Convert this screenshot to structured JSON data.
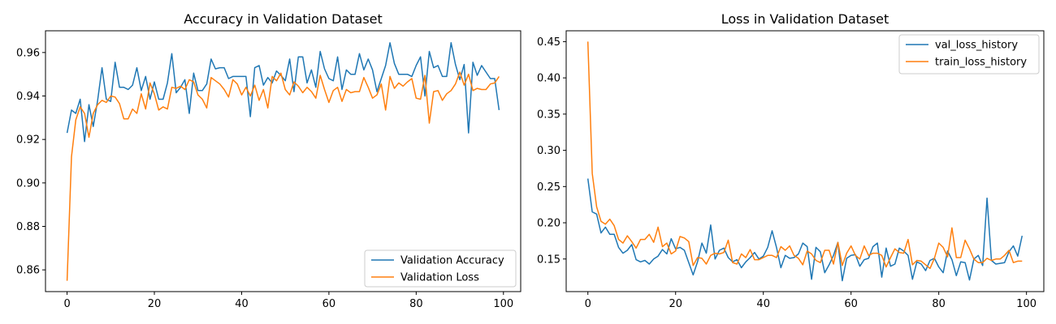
{
  "chart_data": [
    {
      "type": "line",
      "title": "Accuracy in Validation Dataset",
      "xlabel": "",
      "ylabel": "",
      "xlim": [
        -4.95,
        103.95
      ],
      "ylim": [
        0.85,
        0.97
      ],
      "xticks": [
        0,
        20,
        40,
        60,
        80,
        100
      ],
      "yticks": [
        0.86,
        0.88,
        0.9,
        0.92,
        0.94,
        0.96
      ],
      "ytick_labels": [
        "0.86",
        "0.88",
        "0.90",
        "0.92",
        "0.94",
        "0.96"
      ],
      "grid": false,
      "legend_position": "lower-right",
      "x_range": [
        0,
        99
      ],
      "series": [
        {
          "name": "Validation Accuracy",
          "color": "#1f77b4",
          "values": [
            0.923,
            0.9335,
            0.932,
            0.9385,
            0.919,
            0.936,
            0.926,
            0.938,
            0.953,
            0.9385,
            0.9375,
            0.9555,
            0.944,
            0.944,
            0.943,
            0.945,
            0.953,
            0.9425,
            0.949,
            0.9385,
            0.9465,
            0.9385,
            0.9385,
            0.946,
            0.9595,
            0.9415,
            0.944,
            0.9475,
            0.932,
            0.9505,
            0.9425,
            0.9425,
            0.9455,
            0.957,
            0.9525,
            0.953,
            0.953,
            0.948,
            0.949,
            0.949,
            0.949,
            0.949,
            0.9305,
            0.953,
            0.954,
            0.945,
            0.9485,
            0.946,
            0.9515,
            0.9495,
            0.947,
            0.957,
            0.942,
            0.958,
            0.958,
            0.946,
            0.952,
            0.944,
            0.9605,
            0.9525,
            0.948,
            0.947,
            0.958,
            0.943,
            0.952,
            0.95,
            0.95,
            0.9595,
            0.952,
            0.957,
            0.952,
            0.942,
            0.948,
            0.954,
            0.9645,
            0.955,
            0.95,
            0.95,
            0.95,
            0.949,
            0.954,
            0.958,
            0.94,
            0.9605,
            0.953,
            0.954,
            0.949,
            0.949,
            0.9645,
            0.9545,
            0.9475,
            0.9545,
            0.923,
            0.9555,
            0.9495,
            0.954,
            0.951,
            0.948,
            0.948,
            0.9335
          ]
        },
        {
          "name": "Validation Loss",
          "color": "#ff7f0e",
          "values": [
            0.855,
            0.912,
            0.929,
            0.935,
            0.932,
            0.921,
            0.932,
            0.936,
            0.938,
            0.937,
            0.94,
            0.9395,
            0.9365,
            0.9295,
            0.9295,
            0.934,
            0.932,
            0.941,
            0.934,
            0.946,
            0.941,
            0.9335,
            0.935,
            0.934,
            0.944,
            0.9435,
            0.9445,
            0.943,
            0.9475,
            0.9465,
            0.9405,
            0.9385,
            0.9345,
            0.9485,
            0.947,
            0.9455,
            0.943,
            0.9395,
            0.9475,
            0.9455,
            0.9405,
            0.944,
            0.94,
            0.945,
            0.938,
            0.943,
            0.9345,
            0.949,
            0.947,
            0.9505,
            0.943,
            0.9405,
            0.9465,
            0.9445,
            0.9415,
            0.944,
            0.942,
            0.939,
            0.9495,
            0.943,
            0.937,
            0.9425,
            0.944,
            0.9375,
            0.943,
            0.9415,
            0.942,
            0.942,
            0.9485,
            0.944,
            0.939,
            0.9405,
            0.9455,
            0.9335,
            0.949,
            0.9435,
            0.946,
            0.9445,
            0.9465,
            0.948,
            0.939,
            0.9385,
            0.9495,
            0.9275,
            0.942,
            0.9425,
            0.938,
            0.941,
            0.9425,
            0.9455,
            0.951,
            0.945,
            0.95,
            0.9425,
            0.9435,
            0.943,
            0.943,
            0.9455,
            0.946,
            0.949
          ]
        }
      ]
    },
    {
      "type": "line",
      "title": "Loss in Validation Dataset",
      "xlabel": "",
      "ylabel": "",
      "xlim": [
        -4.95,
        103.95
      ],
      "ylim": [
        0.105,
        0.465
      ],
      "xticks": [
        0,
        20,
        40,
        60,
        80,
        100
      ],
      "yticks": [
        0.15,
        0.2,
        0.25,
        0.3,
        0.35,
        0.4,
        0.45
      ],
      "ytick_labels": [
        "0.15",
        "0.20",
        "0.25",
        "0.30",
        "0.35",
        "0.40",
        "0.45"
      ],
      "grid": false,
      "legend_position": "upper-right",
      "x_range": [
        0,
        99
      ],
      "series": [
        {
          "name": "val_loss_history",
          "color": "#1f77b4",
          "values": [
            0.261,
            0.215,
            0.212,
            0.186,
            0.194,
            0.184,
            0.184,
            0.166,
            0.158,
            0.162,
            0.17,
            0.149,
            0.146,
            0.148,
            0.143,
            0.15,
            0.154,
            0.163,
            0.157,
            0.178,
            0.164,
            0.166,
            0.162,
            0.145,
            0.128,
            0.146,
            0.172,
            0.158,
            0.197,
            0.15,
            0.162,
            0.165,
            0.152,
            0.146,
            0.149,
            0.138,
            0.146,
            0.152,
            0.159,
            0.15,
            0.154,
            0.166,
            0.189,
            0.166,
            0.138,
            0.155,
            0.151,
            0.152,
            0.157,
            0.172,
            0.167,
            0.122,
            0.166,
            0.16,
            0.131,
            0.142,
            0.155,
            0.173,
            0.12,
            0.151,
            0.155,
            0.156,
            0.14,
            0.149,
            0.151,
            0.167,
            0.172,
            0.125,
            0.165,
            0.14,
            0.143,
            0.165,
            0.161,
            0.155,
            0.122,
            0.146,
            0.143,
            0.134,
            0.148,
            0.151,
            0.139,
            0.131,
            0.161,
            0.149,
            0.127,
            0.146,
            0.145,
            0.121,
            0.15,
            0.155,
            0.141,
            0.234,
            0.148,
            0.143,
            0.144,
            0.145,
            0.16,
            0.168,
            0.154,
            0.182
          ]
        },
        {
          "name": "train_loss_history",
          "color": "#ff7f0e",
          "values": [
            0.45,
            0.268,
            0.222,
            0.202,
            0.198,
            0.205,
            0.196,
            0.177,
            0.172,
            0.182,
            0.174,
            0.165,
            0.177,
            0.177,
            0.184,
            0.173,
            0.194,
            0.167,
            0.172,
            0.157,
            0.161,
            0.181,
            0.179,
            0.174,
            0.141,
            0.152,
            0.151,
            0.143,
            0.155,
            0.158,
            0.157,
            0.159,
            0.176,
            0.145,
            0.143,
            0.157,
            0.152,
            0.163,
            0.149,
            0.149,
            0.152,
            0.155,
            0.155,
            0.152,
            0.167,
            0.162,
            0.168,
            0.155,
            0.151,
            0.142,
            0.161,
            0.157,
            0.148,
            0.145,
            0.162,
            0.162,
            0.143,
            0.173,
            0.141,
            0.158,
            0.168,
            0.155,
            0.15,
            0.168,
            0.155,
            0.158,
            0.158,
            0.155,
            0.139,
            0.152,
            0.164,
            0.159,
            0.158,
            0.177,
            0.142,
            0.148,
            0.147,
            0.142,
            0.137,
            0.151,
            0.172,
            0.166,
            0.153,
            0.193,
            0.152,
            0.152,
            0.176,
            0.164,
            0.15,
            0.145,
            0.145,
            0.151,
            0.148,
            0.15,
            0.15,
            0.155,
            0.162,
            0.145,
            0.147,
            0.147
          ]
        }
      ]
    }
  ]
}
